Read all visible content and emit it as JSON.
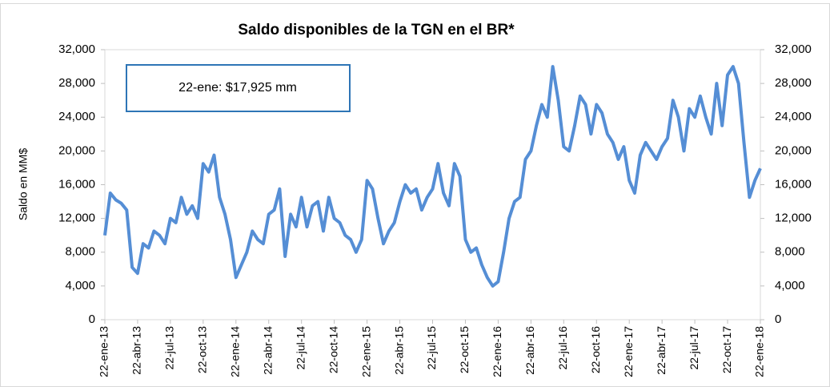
{
  "chart_data": {
    "type": "line",
    "title": "Saldo disponibles de la TGN en el BR*",
    "y_label": "Saldo en MM$",
    "annotation": "22-ene: $17,925 mm",
    "categories": [
      "22-ene-13",
      null,
      null,
      null,
      null,
      null,
      "22-abr-13",
      null,
      null,
      null,
      null,
      null,
      "22-jul-13",
      null,
      null,
      null,
      null,
      null,
      "22-oct-13",
      null,
      null,
      null,
      null,
      null,
      "22-ene-14",
      null,
      null,
      null,
      null,
      null,
      "22-abr-14",
      null,
      null,
      null,
      null,
      null,
      "22-jul-14",
      null,
      null,
      null,
      null,
      null,
      "22-oct-14",
      null,
      null,
      null,
      null,
      null,
      "22-ene-15",
      null,
      null,
      null,
      null,
      null,
      "22-abr-15",
      null,
      null,
      null,
      null,
      null,
      "22-jul-15",
      null,
      null,
      null,
      null,
      null,
      "22-oct-15",
      null,
      null,
      null,
      null,
      null,
      "22-ene-16",
      null,
      null,
      null,
      null,
      null,
      "22-abr-16",
      null,
      null,
      null,
      null,
      null,
      "22-jul-16",
      null,
      null,
      null,
      null,
      null,
      "22-oct-16",
      null,
      null,
      null,
      null,
      null,
      "22-ene-17",
      null,
      null,
      null,
      null,
      null,
      "22-abr-17",
      null,
      null,
      null,
      null,
      null,
      "22-jul-17",
      null,
      null,
      null,
      null,
      null,
      "22-oct-17",
      null,
      null,
      null,
      null,
      null,
      "22-ene-18"
    ],
    "series": [
      {
        "color": "#558ed5",
        "values": [
          10000,
          15000,
          14200,
          13800,
          13000,
          6200,
          5500,
          9000,
          8500,
          10500,
          10000,
          9000,
          12000,
          11500,
          14500,
          12500,
          13500,
          12000,
          18500,
          17500,
          19500,
          14500,
          12500,
          9500,
          5000,
          6500,
          8000,
          10500,
          9500,
          9000,
          12500,
          13000,
          15500,
          7500,
          12500,
          11000,
          14500,
          11000,
          13500,
          14000,
          10500,
          14500,
          12000,
          11500,
          10000,
          9500,
          8000,
          9500,
          16500,
          15500,
          12000,
          9000,
          10500,
          11500,
          14000,
          16000,
          15000,
          15500,
          13000,
          14500,
          15500,
          18500,
          15000,
          13500,
          18500,
          17000,
          9500,
          8000,
          8500,
          6500,
          5000,
          4000,
          4500,
          8000,
          12000,
          14000,
          14500,
          19000,
          20000,
          23000,
          25500,
          24000,
          30000,
          26000,
          20500,
          20000,
          23000,
          26500,
          25500,
          22000,
          25500,
          24500,
          22000,
          21000,
          19000,
          20500,
          16500,
          15000,
          19500,
          21000,
          20000,
          19000,
          20500,
          21500,
          26000,
          24000,
          20000,
          25000,
          24000,
          26500,
          24000,
          22000,
          28000,
          23000,
          29000,
          30000,
          28000,
          21000,
          14500,
          16500,
          17925
        ]
      }
    ],
    "ylim": [
      0,
      32000
    ],
    "yticks": [
      0,
      {
        "value": 4000,
        "label": "4,000"
      },
      {
        "value": 8000,
        "label": "8,000"
      },
      {
        "value": 12000,
        "label": "12,000"
      },
      {
        "value": 16000,
        "label": "16,000"
      },
      {
        "value": 20000,
        "label": "20,000"
      },
      {
        "value": 24000,
        "label": "24,000"
      },
      {
        "value": 28000,
        "label": "28,000"
      },
      {
        "value": 32000,
        "label": "32,000"
      }
    ],
    "y2lim": [
      0,
      32000
    ],
    "y2ticks": [
      0,
      {
        "value": 4000,
        "label": "4,000"
      },
      {
        "value": 8000,
        "label": "8,000"
      },
      {
        "value": 12000,
        "label": "12,000"
      },
      {
        "value": 16000,
        "label": "16,000"
      },
      {
        "value": 20000,
        "label": "20,000"
      },
      {
        "value": 24000,
        "label": "24,000"
      },
      {
        "value": 28000,
        "label": "28,000"
      },
      {
        "value": 32000,
        "label": "32,000"
      }
    ]
  }
}
